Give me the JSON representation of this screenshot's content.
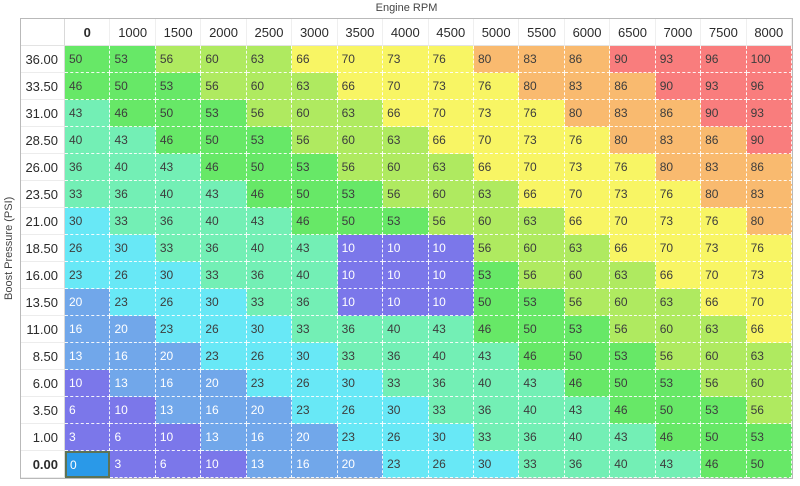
{
  "table": {
    "x_axis_label": "Engine RPM",
    "y_axis_label": "Boost Pressure (PSI)",
    "col_headers": [
      "0",
      "1000",
      "1500",
      "2000",
      "2500",
      "3000",
      "3500",
      "4000",
      "4500",
      "5000",
      "5500",
      "6000",
      "6500",
      "7000",
      "7500",
      "8000"
    ],
    "row_headers": [
      "36.00",
      "33.50",
      "31.00",
      "28.50",
      "26.00",
      "23.50",
      "21.00",
      "18.50",
      "16.00",
      "13.50",
      "11.00",
      "8.50",
      "6.00",
      "3.50",
      "1.00",
      "0.00"
    ],
    "rows": [
      [
        50,
        53,
        56,
        60,
        63,
        66,
        70,
        73,
        76,
        80,
        83,
        86,
        90,
        93,
        96,
        100
      ],
      [
        46,
        50,
        53,
        56,
        60,
        63,
        66,
        70,
        73,
        76,
        80,
        83,
        86,
        90,
        93,
        96
      ],
      [
        43,
        46,
        50,
        53,
        56,
        60,
        63,
        66,
        70,
        73,
        76,
        80,
        83,
        86,
        90,
        93
      ],
      [
        40,
        43,
        46,
        50,
        53,
        56,
        60,
        63,
        66,
        70,
        73,
        76,
        80,
        83,
        86,
        90
      ],
      [
        36,
        40,
        43,
        46,
        50,
        53,
        56,
        60,
        63,
        66,
        70,
        73,
        76,
        80,
        83,
        86
      ],
      [
        33,
        36,
        40,
        43,
        46,
        50,
        53,
        56,
        60,
        63,
        66,
        70,
        73,
        76,
        80,
        83
      ],
      [
        30,
        33,
        36,
        40,
        43,
        46,
        50,
        53,
        56,
        60,
        63,
        66,
        70,
        73,
        76,
        80
      ],
      [
        26,
        30,
        33,
        36,
        40,
        43,
        10,
        10,
        10,
        56,
        60,
        63,
        66,
        70,
        73,
        76
      ],
      [
        23,
        26,
        30,
        33,
        36,
        40,
        10,
        10,
        10,
        53,
        56,
        60,
        63,
        66,
        70,
        73
      ],
      [
        20,
        23,
        26,
        30,
        33,
        36,
        10,
        10,
        10,
        50,
        53,
        56,
        60,
        63,
        66,
        70
      ],
      [
        16,
        20,
        23,
        26,
        30,
        33,
        36,
        40,
        43,
        46,
        50,
        53,
        56,
        60,
        63,
        66
      ],
      [
        13,
        16,
        20,
        23,
        26,
        30,
        33,
        36,
        40,
        43,
        46,
        50,
        53,
        56,
        60,
        63
      ],
      [
        10,
        13,
        16,
        20,
        23,
        26,
        30,
        33,
        36,
        40,
        43,
        46,
        50,
        53,
        56,
        60
      ],
      [
        6,
        10,
        13,
        16,
        20,
        23,
        26,
        30,
        33,
        36,
        40,
        43,
        46,
        50,
        53,
        56
      ],
      [
        3,
        6,
        10,
        13,
        16,
        20,
        23,
        26,
        30,
        33,
        36,
        40,
        43,
        46,
        50,
        53
      ],
      [
        0,
        3,
        6,
        10,
        13,
        16,
        20,
        23,
        26,
        30,
        33,
        36,
        40,
        43,
        46,
        50
      ]
    ],
    "selected": {
      "row_index": 15,
      "col_index": 0,
      "row_label": "0.00",
      "col_label": "0",
      "value": 0
    }
  },
  "colors": {
    "scale": [
      {
        "max": 10,
        "name": "purple",
        "bg": "#7b77ea",
        "text": "#ffffff"
      },
      {
        "max": 20,
        "name": "blue",
        "bg": "#71a7ea",
        "text": "#ffffff"
      },
      {
        "max": 30,
        "name": "cyan",
        "bg": "#68e8f6",
        "text": "#3d3d3d"
      },
      {
        "max": 43,
        "name": "aquamarine",
        "bg": "#73efb5",
        "text": "#3d3d3d"
      },
      {
        "max": 53,
        "name": "green",
        "bg": "#67e867",
        "text": "#3d3d3d"
      },
      {
        "max": 63,
        "name": "yellow-green",
        "bg": "#afea60",
        "text": "#3d3d3d"
      },
      {
        "max": 76,
        "name": "yellow",
        "bg": "#f8f564",
        "text": "#3d3d3d"
      },
      {
        "max": 86,
        "name": "orange",
        "bg": "#f9ba6f",
        "text": "#3d3d3d"
      },
      {
        "max": 100,
        "name": "red",
        "bg": "#f97d7d",
        "text": "#3d3d3d"
      }
    ],
    "selected_cell_bg": "#2a99e8",
    "selected_cell_text": "#ffffff",
    "selected_cell_border": "#5d7355",
    "grid_line": "#ffffff"
  }
}
